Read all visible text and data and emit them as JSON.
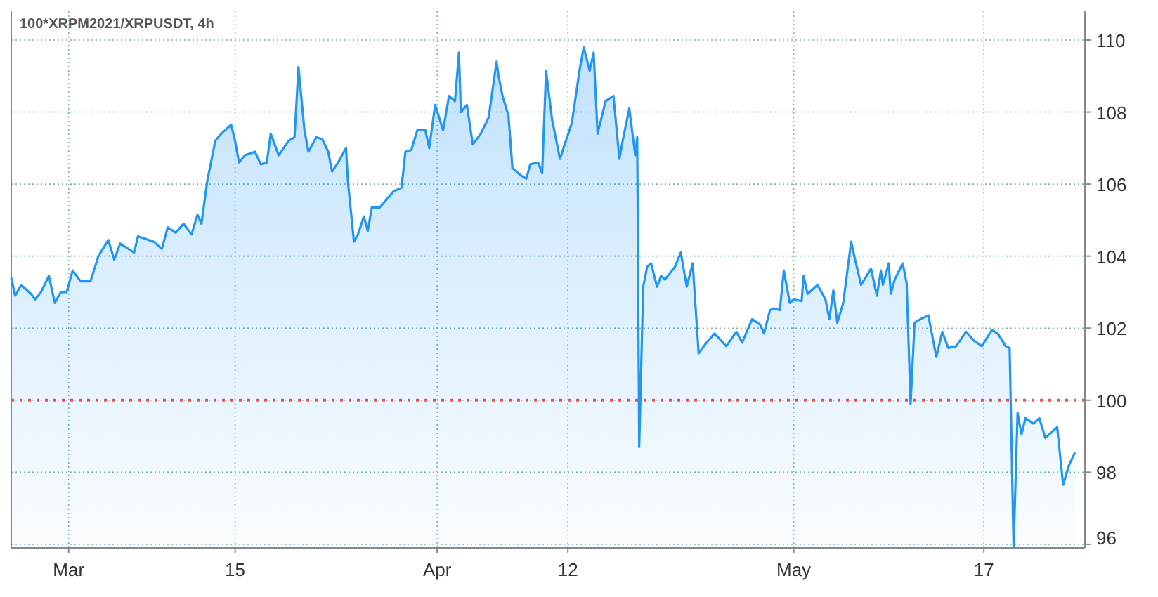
{
  "chart_data": {
    "type": "area",
    "title": "100*XRPM2021/XRPUSDT, 4h",
    "x": [
      "2021-02-24T04:00",
      "2021-02-24T12:00",
      "2021-02-25T00:00",
      "2021-02-25T20:00",
      "2021-02-26T04:00",
      "2021-02-26T16:00",
      "2021-02-27T08:00",
      "2021-02-27T20:00",
      "2021-02-28T08:00",
      "2021-02-28T20:00",
      "2021-03-01T08:00",
      "2021-03-02T00:00",
      "2021-03-02T20:00",
      "2021-03-03T12:00",
      "2021-03-04T08:00",
      "2021-03-04T20:00",
      "2021-03-05T08:00",
      "2021-03-06T12:00",
      "2021-03-06T20:00",
      "2021-03-08T04:00",
      "2021-03-08T20:00",
      "2021-03-09T08:00",
      "2021-03-10T00:00",
      "2021-03-10T16:00",
      "2021-03-11T08:00",
      "2021-03-11T20:00",
      "2021-03-12T04:00",
      "2021-03-12T16:00",
      "2021-03-13T08:00",
      "2021-03-13T20:00",
      "2021-03-14T16:00",
      "2021-03-15T00:00",
      "2021-03-15T08:00",
      "2021-03-15T20:00",
      "2021-03-16T16:00",
      "2021-03-17T04:00",
      "2021-03-17T16:00",
      "2021-03-18T00:00",
      "2021-03-18T16:00",
      "2021-03-19T12:00",
      "2021-03-20T00:00",
      "2021-03-20T08:00",
      "2021-03-20T20:00",
      "2021-03-21T04:00",
      "2021-03-21T20:00",
      "2021-03-22T08:00",
      "2021-03-22T20:00",
      "2021-03-23T04:00",
      "2021-03-23T16:00",
      "2021-03-24T08:00",
      "2021-03-24T12:00",
      "2021-03-25T00:00",
      "2021-03-25T08:00",
      "2021-03-25T20:00",
      "2021-03-26T04:00",
      "2021-03-26T12:00",
      "2021-03-27T04:00",
      "2021-03-28T08:00",
      "2021-03-29T00:00",
      "2021-03-29T08:00",
      "2021-03-29T20:00",
      "2021-03-30T08:00",
      "2021-03-31T00:00",
      "2021-03-31T08:00",
      "2021-03-31T20:00",
      "2021-04-01T12:00",
      "2021-04-02T00:00",
      "2021-04-02T12:00",
      "2021-04-02T20:00",
      "2021-04-03T00:00",
      "2021-04-03T12:00",
      "2021-04-04T00:00",
      "2021-04-04T16:00",
      "2021-04-05T08:00",
      "2021-04-06T00:00",
      "2021-04-06T04:00",
      "2021-04-06T12:00",
      "2021-04-07T00:00",
      "2021-04-07T08:00",
      "2021-04-08T00:00",
      "2021-04-08T12:00",
      "2021-04-08T20:00",
      "2021-04-09T12:00",
      "2021-04-09T20:00",
      "2021-04-10T04:00",
      "2021-04-10T16:00",
      "2021-04-11T08:00",
      "2021-04-11T20:00",
      "2021-04-12T08:00",
      "2021-04-13T00:00",
      "2021-04-13T08:00",
      "2021-04-13T20:00",
      "2021-04-14T04:00",
      "2021-04-14T12:00",
      "2021-04-15T04:00",
      "2021-04-15T20:00",
      "2021-04-16T08:00",
      "2021-04-16T16:00",
      "2021-04-17T04:00",
      "2021-04-17T16:00",
      "2021-04-17T20:00",
      "2021-04-18T00:00",
      "2021-04-18T08:00",
      "2021-04-18T16:00",
      "2021-04-19T00:00",
      "2021-04-19T12:00",
      "2021-04-19T20:00",
      "2021-04-20T04:00",
      "2021-04-21T00:00",
      "2021-04-21T12:00",
      "2021-04-22T00:00",
      "2021-04-22T12:00",
      "2021-04-23T00:00",
      "2021-04-23T16:00",
      "2021-04-24T08:00",
      "2021-04-25T08:00",
      "2021-04-26T04:00",
      "2021-04-26T16:00",
      "2021-04-27T12:00",
      "2021-04-28T04:00",
      "2021-04-28T12:00",
      "2021-04-29T00:00",
      "2021-04-29T08:00",
      "2021-04-29T20:00",
      "2021-04-30T04:00",
      "2021-04-30T16:00",
      "2021-05-01T00:00",
      "2021-05-01T16:00",
      "2021-05-01T20:00",
      "2021-05-02T04:00",
      "2021-05-03T00:00",
      "2021-05-03T16:00",
      "2021-05-04T00:00",
      "2021-05-04T08:00",
      "2021-05-04T16:00",
      "2021-05-05T04:00",
      "2021-05-05T20:00",
      "2021-05-06T04:00",
      "2021-05-06T16:00",
      "2021-05-07T12:00",
      "2021-05-08T00:00",
      "2021-05-08T08:00",
      "2021-05-08T12:00",
      "2021-05-09T00:00",
      "2021-05-09T04:00",
      "2021-05-09T12:00",
      "2021-05-10T04:00",
      "2021-05-10T12:00",
      "2021-05-10T20:00",
      "2021-05-11T04:00",
      "2021-05-11T16:00",
      "2021-05-12T08:00",
      "2021-05-13T00:00",
      "2021-05-13T12:00",
      "2021-05-14T00:00",
      "2021-05-14T16:00",
      "2021-05-15T12:00",
      "2021-05-16T04:00",
      "2021-05-16T20:00",
      "2021-05-17T16:00",
      "2021-05-18T04:00",
      "2021-05-18T20:00",
      "2021-05-19T04:00",
      "2021-05-19T12:00",
      "2021-05-19T20:00",
      "2021-05-20T04:00",
      "2021-05-20T12:00",
      "2021-05-21T04:00",
      "2021-05-21T16:00",
      "2021-05-22T04:00",
      "2021-05-23T04:00",
      "2021-05-23T16:00",
      "2021-05-24T04:00",
      "2021-05-24T16:00"
    ],
    "series": [
      {
        "color": "#2196f3",
        "values": [
          103.4,
          102.9,
          103.2,
          102.95,
          102.8,
          103.0,
          103.45,
          102.7,
          103.0,
          103.0,
          103.6,
          103.3,
          103.3,
          104.0,
          104.45,
          103.9,
          104.35,
          104.1,
          104.55,
          104.4,
          104.2,
          104.8,
          104.65,
          104.9,
          104.6,
          105.15,
          104.9,
          106.1,
          107.2,
          107.4,
          107.65,
          107.2,
          106.6,
          106.8,
          106.9,
          106.55,
          106.6,
          107.4,
          106.8,
          107.2,
          107.3,
          109.25,
          107.5,
          106.9,
          107.3,
          107.25,
          106.9,
          106.35,
          106.6,
          107.0,
          106.05,
          104.4,
          104.6,
          105.1,
          104.7,
          105.35,
          105.35,
          105.8,
          105.9,
          106.9,
          106.95,
          107.5,
          107.5,
          107.0,
          108.2,
          107.5,
          108.45,
          108.3,
          109.65,
          108.0,
          108.2,
          107.1,
          107.4,
          107.85,
          109.4,
          109.0,
          108.45,
          107.9,
          106.45,
          106.25,
          106.15,
          106.55,
          106.6,
          106.3,
          109.15,
          107.8,
          106.7,
          107.2,
          107.7,
          109.2,
          109.8,
          109.15,
          109.65,
          107.4,
          108.3,
          108.45,
          106.7,
          107.3,
          108.1,
          106.8,
          107.3,
          98.7,
          103.15,
          103.7,
          103.8,
          103.15,
          103.45,
          103.35,
          103.7,
          104.1,
          103.15,
          103.8,
          101.3,
          101.6,
          101.85,
          101.5,
          101.9,
          101.6,
          102.25,
          102.1,
          101.85,
          102.5,
          102.55,
          102.5,
          103.6,
          102.7,
          102.8,
          102.75,
          103.45,
          102.95,
          103.2,
          102.8,
          102.25,
          103.05,
          102.15,
          102.7,
          104.4,
          103.9,
          103.2,
          103.65,
          102.9,
          103.6,
          103.2,
          103.8,
          102.95,
          103.35,
          103.8,
          103.25,
          99.9,
          102.15,
          102.25,
          102.35,
          101.2,
          101.9,
          101.45,
          101.5,
          101.9,
          101.65,
          101.5,
          101.95,
          101.85,
          101.5,
          101.45,
          95.9,
          99.65,
          99.05,
          99.5,
          99.35,
          99.5,
          98.95,
          99.25,
          97.65,
          98.2,
          98.55
        ]
      }
    ],
    "xlim": [
      "2021-02-24T04:00",
      "2021-05-25T12:00"
    ],
    "xticks": [
      {
        "value": "2021-03-01",
        "label": "Mar"
      },
      {
        "value": "2021-03-15",
        "label": "15"
      },
      {
        "value": "2021-04-01",
        "label": "Apr"
      },
      {
        "value": "2021-04-12",
        "label": "12"
      },
      {
        "value": "2021-05-01",
        "label": "May"
      },
      {
        "value": "2021-05-17",
        "label": "17"
      }
    ],
    "ylim": [
      95.9,
      110.8
    ],
    "yticks": [
      96,
      98,
      100,
      102,
      104,
      106,
      108,
      110
    ],
    "grid": true,
    "ref_lines": [
      {
        "axis": "y",
        "value": 100,
        "color": "#ef5350",
        "line_style": "dotted"
      }
    ]
  }
}
